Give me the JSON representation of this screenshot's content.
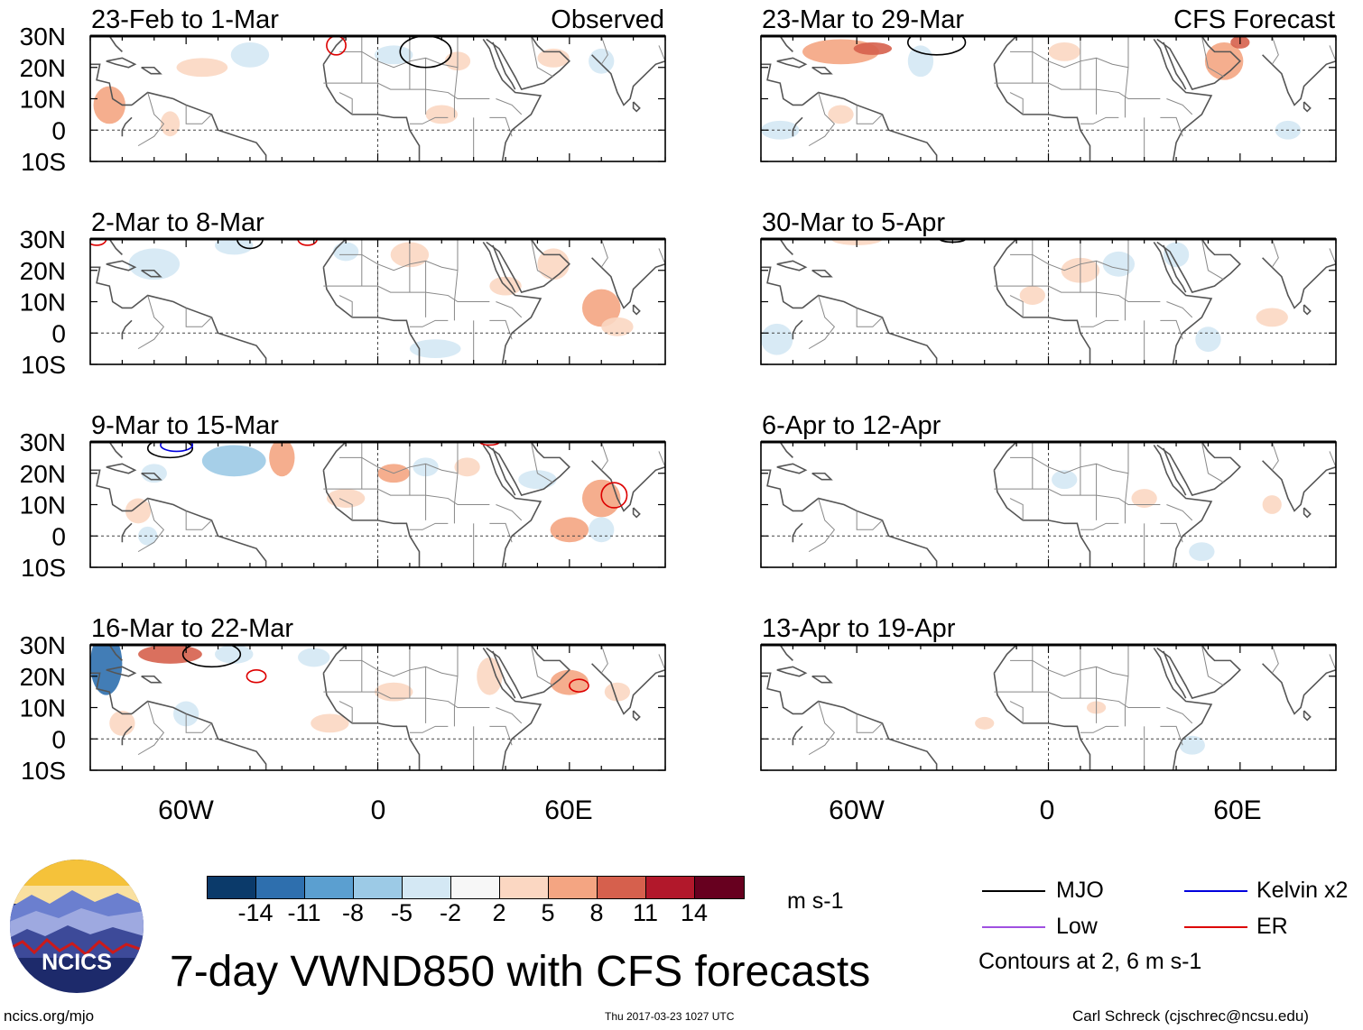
{
  "header": {
    "left_label": "Observed",
    "right_label": "CFS Forecast"
  },
  "axes": {
    "lat_labels": [
      "30N",
      "20N",
      "10N",
      "0",
      "10S"
    ],
    "lon_labels": [
      "60W",
      "0",
      "60E"
    ]
  },
  "panels": {
    "observed": [
      {
        "title": "23-Feb to 1-Mar"
      },
      {
        "title": "2-Mar to 8-Mar"
      },
      {
        "title": "9-Mar to 15-Mar"
      },
      {
        "title": "16-Mar to 22-Mar"
      }
    ],
    "forecast": [
      {
        "title": "23-Mar to 29-Mar"
      },
      {
        "title": "30-Mar to 5-Apr"
      },
      {
        "title": "6-Apr to 12-Apr"
      },
      {
        "title": "13-Apr to 19-Apr"
      }
    ]
  },
  "colorbar": {
    "labels": [
      "-14",
      "-11",
      "-8",
      "-5",
      "-2",
      "2",
      "5",
      "8",
      "11",
      "14"
    ],
    "colors": [
      "#0b3a6a",
      "#2e6fae",
      "#5b9fd0",
      "#9ccae6",
      "#d4e8f4",
      "#f7f7f7",
      "#fbd7c2",
      "#f4a582",
      "#d6604d",
      "#b2182b",
      "#67001f"
    ],
    "units": "m s-1"
  },
  "legend": {
    "items": [
      {
        "label": "MJO",
        "color": "#000000"
      },
      {
        "label": "Kelvin x2",
        "color": "#0000dd"
      },
      {
        "label": "Low",
        "color": "#a050e0"
      },
      {
        "label": "ER",
        "color": "#dd0000"
      }
    ],
    "note": "Contours at 2, 6 m s-1"
  },
  "title": "7-day VWND850 with CFS forecasts",
  "logo": {
    "label": "NCICS"
  },
  "footer": {
    "url": "ncics.org/mjo",
    "timestamp": "Thu 2017-03-23 1027 UTC",
    "author": "Carl Schreck (cjschrec@ncsu.edu)"
  }
}
